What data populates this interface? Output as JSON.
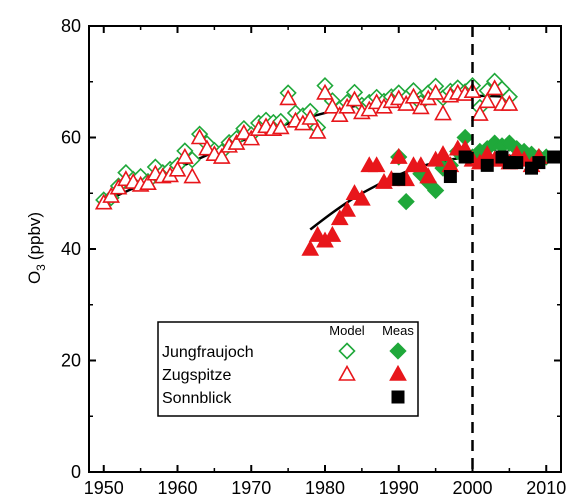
{
  "chart_data": {
    "type": "scatter",
    "xlabel": "",
    "ylabel": "O",
    "ylabel_sub": "3",
    "ylabel_unit": "(ppbv)",
    "xlim": [
      1948,
      2012
    ],
    "ylim": [
      0,
      80
    ],
    "x_ticks": [
      1950,
      1960,
      1970,
      1980,
      1990,
      2000,
      2010
    ],
    "y_ticks": [
      0,
      20,
      40,
      60,
      80
    ],
    "grid": false,
    "reference_line": {
      "x": 2000,
      "style": "dashed",
      "color": "#000000"
    },
    "colors": {
      "green": "#1fa83a",
      "red": "#e8161b",
      "black": "#000000",
      "fit": "#000000"
    },
    "legend": {
      "placement": "lower-left",
      "col_model": "Model",
      "col_meas": "Meas",
      "rows": [
        {
          "label": "Jungfraujoch",
          "model_marker": "open-diamond-green",
          "meas_marker": "filled-diamond-green"
        },
        {
          "label": "Zugspitze",
          "model_marker": "open-triangle-red",
          "meas_marker": "filled-triangle-red"
        },
        {
          "label": "Sonnblick",
          "model_marker": "",
          "meas_marker": "filled-square-black"
        }
      ]
    },
    "series": [
      {
        "site": "Jungfraujoch",
        "kind": "Model",
        "marker": "open-diamond",
        "color": "#1fa83a",
        "x": [
          1950,
          1951,
          1952,
          1953,
          1954,
          1955,
          1956,
          1957,
          1958,
          1959,
          1960,
          1961,
          1962,
          1963,
          1964,
          1965,
          1966,
          1967,
          1968,
          1969,
          1970,
          1971,
          1972,
          1973,
          1974,
          1975,
          1976,
          1977,
          1978,
          1979,
          1980,
          1981,
          1982,
          1983,
          1984,
          1985,
          1986,
          1987,
          1988,
          1989,
          1990,
          1991,
          1992,
          1993,
          1994,
          1995,
          1996,
          1997,
          1998,
          1999,
          2000,
          2001,
          2002,
          2003,
          2004,
          2005
        ],
        "y": [
          48.8,
          49.2,
          51.3,
          53.7,
          52.5,
          53.0,
          52.1,
          54.7,
          53.7,
          54.3,
          55.0,
          57.6,
          56.0,
          60.6,
          58.9,
          57.7,
          57.4,
          59.1,
          59.8,
          61.6,
          60.5,
          62.6,
          63.1,
          62.7,
          62.9,
          68.0,
          64.4,
          63.9,
          64.7,
          61.8,
          69.3,
          66.6,
          65.1,
          66.3,
          68.1,
          65.8,
          66.3,
          67.2,
          66.5,
          67.3,
          68.0,
          67.0,
          68.4,
          66.2,
          68.0,
          69.2,
          67.1,
          68.3,
          68.9,
          68.2,
          69.3,
          65.4,
          68.4,
          70.1,
          68.7,
          67.3
        ]
      },
      {
        "site": "Zugspitze",
        "kind": "Model",
        "marker": "open-triangle",
        "color": "#e8161b",
        "x": [
          1950,
          1951,
          1952,
          1953,
          1954,
          1955,
          1956,
          1957,
          1958,
          1959,
          1960,
          1961,
          1962,
          1963,
          1964,
          1965,
          1966,
          1967,
          1968,
          1969,
          1970,
          1971,
          1972,
          1973,
          1974,
          1975,
          1976,
          1977,
          1978,
          1979,
          1980,
          1981,
          1982,
          1983,
          1984,
          1985,
          1986,
          1987,
          1988,
          1989,
          1990,
          1991,
          1992,
          1993,
          1994,
          1995,
          1996,
          1997,
          1998,
          1999,
          2000,
          2001,
          2002,
          2003,
          2004,
          2005
        ],
        "y": [
          48.3,
          49.5,
          51.0,
          52.5,
          52.0,
          51.5,
          51.8,
          53.5,
          53.0,
          53.2,
          54.2,
          56.5,
          53.0,
          60.0,
          58.0,
          57.0,
          56.5,
          58.5,
          59.0,
          60.8,
          59.8,
          61.5,
          62.0,
          61.5,
          61.8,
          67.0,
          63.0,
          62.5,
          63.5,
          61.0,
          68.0,
          65.5,
          64.0,
          65.5,
          66.8,
          64.5,
          65.0,
          66.3,
          65.5,
          66.5,
          67.0,
          66.0,
          67.3,
          65.4,
          67.0,
          68.0,
          64.3,
          67.5,
          68.0,
          67.8,
          68.3,
          64.2,
          66.5,
          68.8,
          66.0,
          66.0
        ]
      },
      {
        "site": "Jungfraujoch",
        "kind": "Meas",
        "marker": "filled-diamond",
        "color": "#1fa83a",
        "x": [
          1990,
          1991,
          1993,
          1994,
          1995,
          1996,
          1997,
          1998,
          1999,
          2000,
          2001,
          2002,
          2003,
          2004,
          2005,
          2006,
          2007,
          2008,
          2009,
          2010
        ],
        "y": [
          56.5,
          48.5,
          53.5,
          52.0,
          50.5,
          54.5,
          55.0,
          57.5,
          60.0,
          56.5,
          57.5,
          58.0,
          59.0,
          58.5,
          59.0,
          58.0,
          57.5,
          57.0,
          56.5,
          56.5
        ]
      },
      {
        "site": "Zugspitze",
        "kind": "Meas",
        "marker": "filled-triangle",
        "color": "#e8161b",
        "x": [
          1978,
          1979,
          1980,
          1981,
          1982,
          1983,
          1984,
          1985,
          1986,
          1987,
          1988,
          1989,
          1990,
          1991,
          1992,
          1993,
          1994,
          1995,
          1996,
          1997,
          1998,
          1999,
          2000,
          2001,
          2002,
          2003,
          2004,
          2005,
          2006,
          2007,
          2008,
          2009
        ],
        "y": [
          40.0,
          42.5,
          41.5,
          42.5,
          45.5,
          47.0,
          50.0,
          49.0,
          55.0,
          55.0,
          52.0,
          52.5,
          56.5,
          52.5,
          55.0,
          55.0,
          53.0,
          56.0,
          57.0,
          55.0,
          58.0,
          58.0,
          56.0,
          55.5,
          57.0,
          56.0,
          56.0,
          55.5,
          57.0,
          56.0,
          55.0,
          56.5
        ]
      },
      {
        "site": "Sonnblick",
        "kind": "Meas",
        "marker": "filled-square",
        "color": "#000000",
        "x": [
          1990,
          1997,
          1999,
          2002,
          2004,
          2005,
          2006,
          2008,
          2009,
          2011
        ],
        "y": [
          52.5,
          53.0,
          56.5,
          55.0,
          56.5,
          55.5,
          55.5,
          54.5,
          55.5,
          56.5
        ]
      }
    ],
    "fits": [
      {
        "name": "model fit",
        "x": [
          1950,
          1955,
          1960,
          1965,
          1970,
          1975,
          1980,
          1985,
          1990,
          1995,
          2000,
          2005
        ],
        "y": [
          48.5,
          51.5,
          54.5,
          57.4,
          60.1,
          62.5,
          64.4,
          65.9,
          66.9,
          67.4,
          67.5,
          67.3
        ]
      },
      {
        "name": "measurement fit",
        "x": [
          1978,
          1981,
          1984,
          1987,
          1990,
          1993,
          1996,
          1999,
          2002,
          2005,
          2008,
          2011
        ],
        "y": [
          43.5,
          46.5,
          49.2,
          51.4,
          53.3,
          54.8,
          55.8,
          56.4,
          56.7,
          56.7,
          56.4,
          55.8
        ]
      }
    ]
  }
}
